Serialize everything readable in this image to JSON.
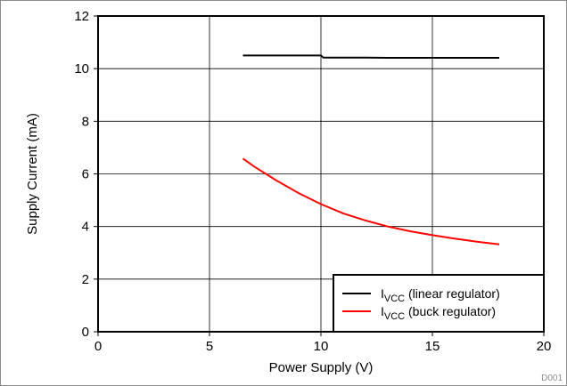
{
  "chart_data": {
    "type": "line",
    "title": "",
    "xlabel": "Power Supply (V)",
    "ylabel": "Supply Current (mA)",
    "xlim": [
      0,
      20
    ],
    "ylim": [
      0,
      12
    ],
    "x_ticks": [
      0,
      5,
      10,
      15,
      20
    ],
    "y_ticks": [
      0,
      2,
      4,
      6,
      8,
      10,
      12
    ],
    "grid": true,
    "legend_position": "bottom-right",
    "series": [
      {
        "name": "I",
        "name_subscript": "VCC",
        "name_suffix": " (linear regulator)",
        "color": "#000000",
        "x": [
          6.5,
          7,
          8,
          9,
          10,
          10.1,
          11,
          12,
          13,
          14,
          15,
          16,
          17,
          18
        ],
        "y": [
          10.5,
          10.5,
          10.5,
          10.5,
          10.5,
          10.42,
          10.42,
          10.42,
          10.41,
          10.41,
          10.41,
          10.41,
          10.41,
          10.41
        ]
      },
      {
        "name": "I",
        "name_subscript": "VCC",
        "name_suffix": " (buck regulator)",
        "color": "#ff0000",
        "x": [
          6.5,
          7,
          8,
          9,
          10,
          11,
          12,
          13,
          14,
          15,
          16,
          17,
          18
        ],
        "y": [
          6.58,
          6.28,
          5.75,
          5.27,
          4.85,
          4.5,
          4.23,
          4.0,
          3.82,
          3.67,
          3.54,
          3.42,
          3.32
        ]
      }
    ]
  },
  "figure_id": "D001"
}
